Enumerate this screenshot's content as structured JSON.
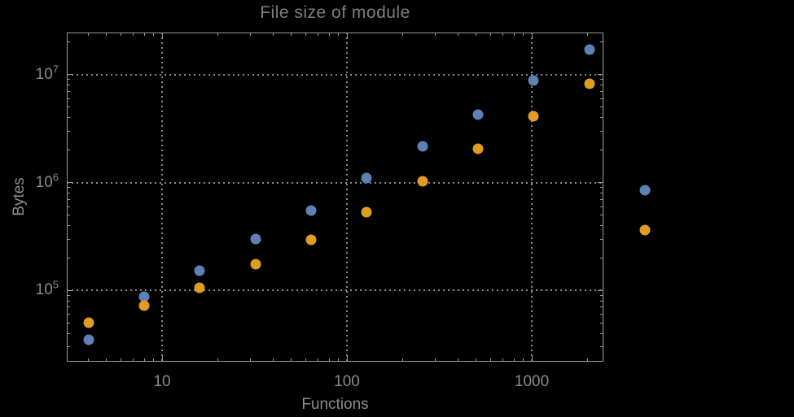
{
  "chart_data": {
    "type": "scatter",
    "title": "File size of module",
    "xlabel": "Functions",
    "ylabel": "Bytes",
    "x_scale": "log",
    "y_scale": "log",
    "xlim": [
      3.05,
      2441
    ],
    "ylim": [
      21900,
      24600000
    ],
    "grid": "dotted",
    "legend": "none",
    "x_ticks": [
      {
        "value": 10,
        "label": "10"
      },
      {
        "value": 100,
        "label": "100"
      },
      {
        "value": 1000,
        "label": "1000"
      }
    ],
    "y_ticks": [
      {
        "value": 100000,
        "base": "10",
        "exp": "5"
      },
      {
        "value": 1000000,
        "base": "10",
        "exp": "6"
      },
      {
        "value": 10000000,
        "base": "10",
        "exp": "7"
      }
    ],
    "x": [
      4,
      8,
      16,
      32,
      64,
      128,
      256,
      512,
      1024,
      2048,
      4096
    ],
    "series": [
      {
        "name": "series-1-blue",
        "color": "#5e81b5",
        "values": [
          35000,
          87000,
          154000,
          298000,
          552000,
          1110000,
          2180000,
          4280000,
          8860000,
          17100000,
          845000
        ]
      },
      {
        "name": "series-2-orange",
        "color": "#e19c24",
        "values": [
          50000,
          72000,
          107000,
          174000,
          297000,
          536000,
          1035000,
          2070000,
          4140000,
          8270000,
          363000
        ]
      }
    ],
    "colors": {
      "background": "#000000",
      "frame": "#9c9c9c",
      "grid": "#8b8b8b",
      "text": "#8b8b8b",
      "title": "#7e7e7e"
    }
  }
}
